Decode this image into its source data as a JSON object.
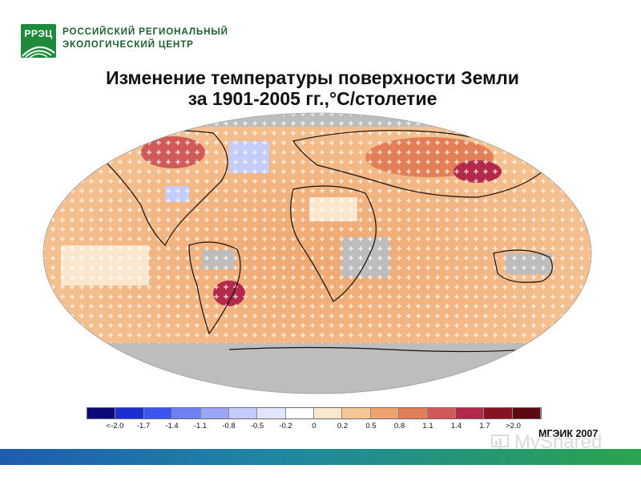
{
  "header": {
    "org_abbr": "РРЭЦ",
    "org_name_line1": "РОССИЙСКИЙ РЕГИОНАЛЬНЫЙ",
    "org_name_line2": "ЭКОЛОГИЧЕСКИЙ ЦЕНТР"
  },
  "title": {
    "line1": "Изменение температуры поверхности Земли",
    "line2": "за 1901-2005 гг.,°С/столетие"
  },
  "map": {
    "projection": "robinson-like oval",
    "description_colors": {
      "no_data": "#bdbdbd",
      "land_outline": "#111111",
      "grid_marker": "#ffffff"
    },
    "legend": {
      "colors": [
        "#0a0a7a",
        "#1a2fd0",
        "#3a56ee",
        "#6f80f2",
        "#9aa7f6",
        "#c3ccfa",
        "#e2e6fc",
        "#ffffff",
        "#fbe6cf",
        "#f6c697",
        "#eea46c",
        "#e27f57",
        "#cf5a57",
        "#b3294a",
        "#861222",
        "#5a0a10"
      ],
      "labels": [
        "<-2.0",
        "-1.7",
        "-1.4",
        "-1.1",
        "-0.8",
        "-0.5",
        "-0.2",
        "0",
        "0.2",
        "0.5",
        "0.8",
        "1.1",
        "1.4",
        "1.7",
        ">2.0"
      ]
    }
  },
  "source": "МГЭИК 2007",
  "watermark": "MyShared"
}
